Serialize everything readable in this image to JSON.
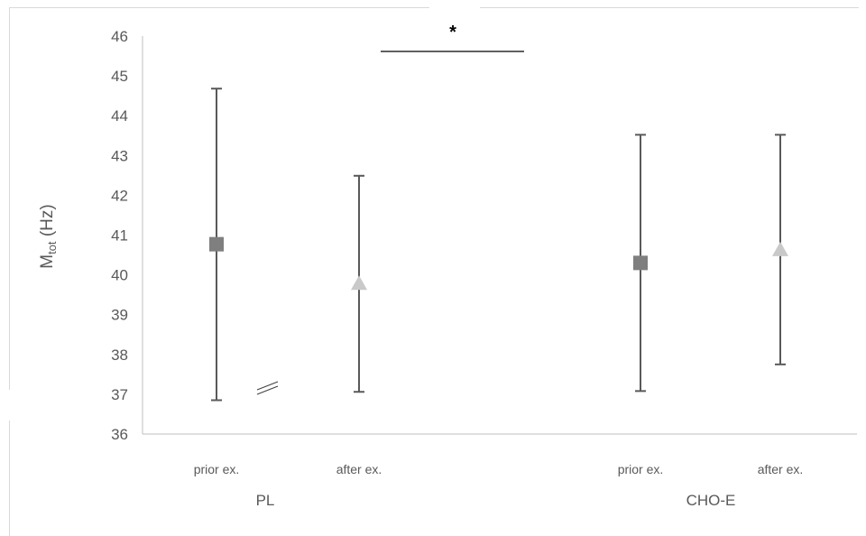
{
  "chart_data": {
    "type": "scatter",
    "y_axis": {
      "label": "M",
      "label_subscript": "tot",
      "label_unit": " (Hz)",
      "ylim": [
        36,
        46
      ],
      "ticks": [
        "36",
        "37",
        "38",
        "39",
        "40",
        "41",
        "42",
        "43",
        "44",
        "45",
        "46"
      ]
    },
    "groups": [
      "PL",
      "CHO-E"
    ],
    "categories": [
      "prior ex.",
      "after ex.",
      "prior ex.",
      "after ex."
    ],
    "points": [
      {
        "group": "PL",
        "category": "prior ex.",
        "value": 40.77,
        "lower": 36.85,
        "upper": 44.68,
        "marker": "square"
      },
      {
        "group": "PL",
        "category": "after ex.",
        "value": 39.78,
        "lower": 37.06,
        "upper": 42.49,
        "marker": "triangle"
      },
      {
        "group": "CHO-E",
        "category": "prior ex.",
        "value": 40.3,
        "lower": 37.08,
        "upper": 43.52,
        "marker": "square"
      },
      {
        "group": "CHO-E",
        "category": "after ex.",
        "value": 40.63,
        "lower": 37.75,
        "upper": 43.52,
        "marker": "triangle"
      }
    ],
    "annotation": {
      "text": "*"
    },
    "colors": {
      "square": "#7f7f7f",
      "triangle": "#c9c9c9",
      "errorbar": "#595959",
      "axis": "#bfbfbf"
    },
    "grid": false,
    "legend": "none"
  }
}
